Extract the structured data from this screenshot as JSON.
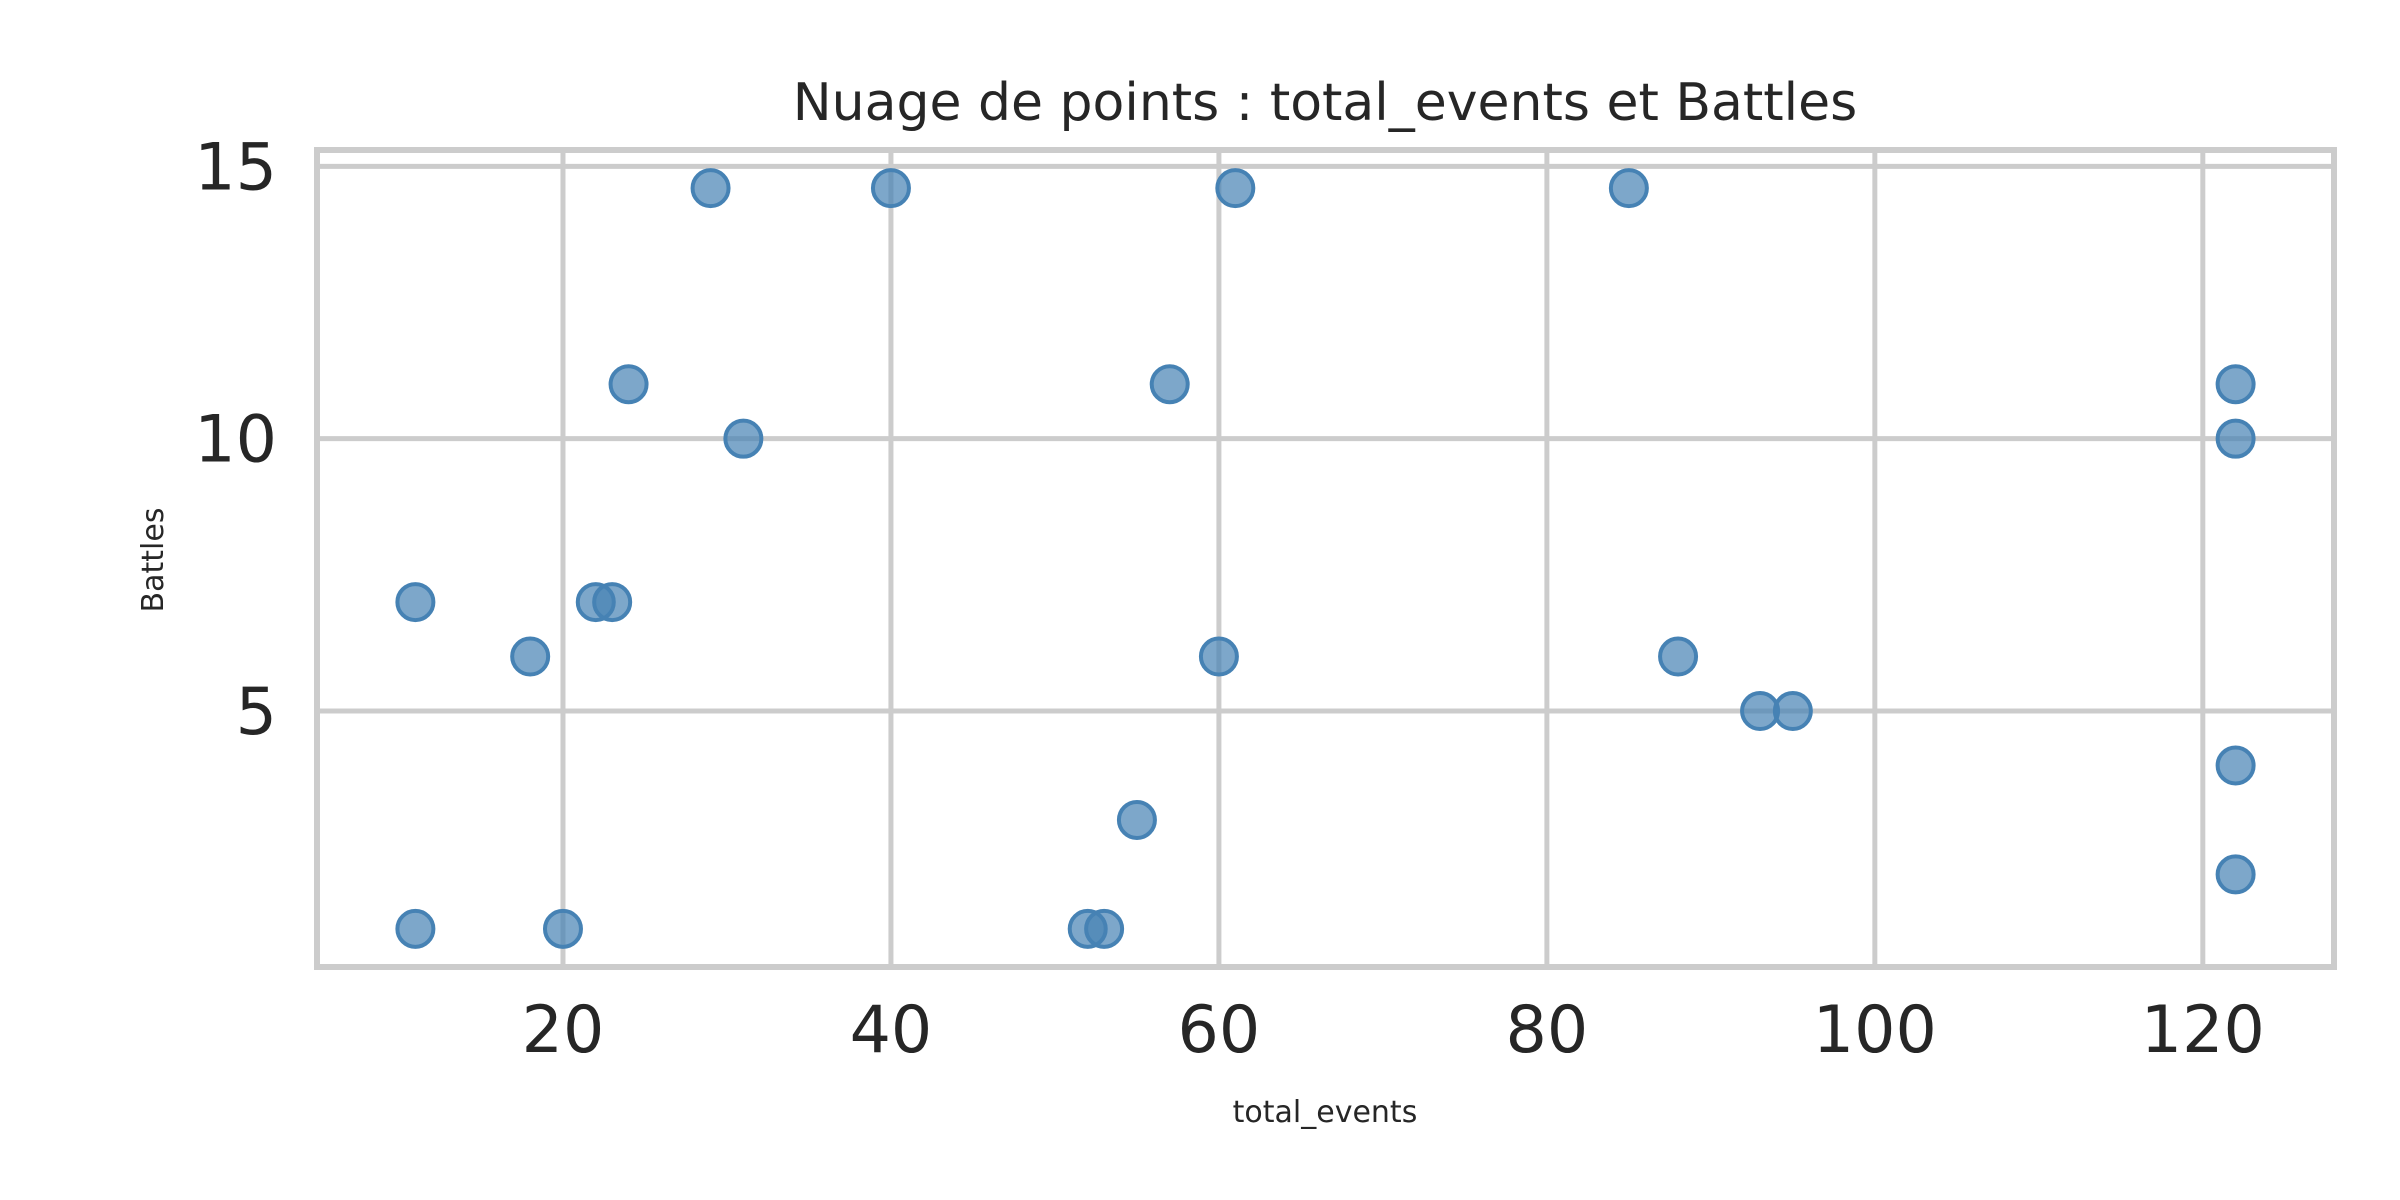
{
  "chart_data": {
    "type": "scatter",
    "title": "Nuage de points : total_events et Battles",
    "xlabel": "total_events",
    "ylabel": "Battles",
    "xlim": [
      5,
      128
    ],
    "ylim": [
      0.3,
      15.3
    ],
    "xticks": [
      20,
      40,
      60,
      80,
      100,
      120
    ],
    "yticks": [
      5,
      10,
      15
    ],
    "grid": true,
    "color": "#4682b4",
    "points": [
      {
        "x": 11,
        "y": 7
      },
      {
        "x": 11,
        "y": 1
      },
      {
        "x": 18,
        "y": 6
      },
      {
        "x": 20,
        "y": 1
      },
      {
        "x": 22,
        "y": 7
      },
      {
        "x": 23,
        "y": 7
      },
      {
        "x": 24,
        "y": 11
      },
      {
        "x": 29,
        "y": 14.6
      },
      {
        "x": 31,
        "y": 10
      },
      {
        "x": 40,
        "y": 14.6
      },
      {
        "x": 52,
        "y": 1
      },
      {
        "x": 53,
        "y": 1
      },
      {
        "x": 55,
        "y": 3
      },
      {
        "x": 57,
        "y": 11
      },
      {
        "x": 60,
        "y": 6
      },
      {
        "x": 61,
        "y": 14.6
      },
      {
        "x": 85,
        "y": 14.6
      },
      {
        "x": 88,
        "y": 6
      },
      {
        "x": 93,
        "y": 5
      },
      {
        "x": 95,
        "y": 5
      },
      {
        "x": 122,
        "y": 11
      },
      {
        "x": 122,
        "y": 10
      },
      {
        "x": 122,
        "y": 4
      },
      {
        "x": 122,
        "y": 2
      }
    ]
  }
}
